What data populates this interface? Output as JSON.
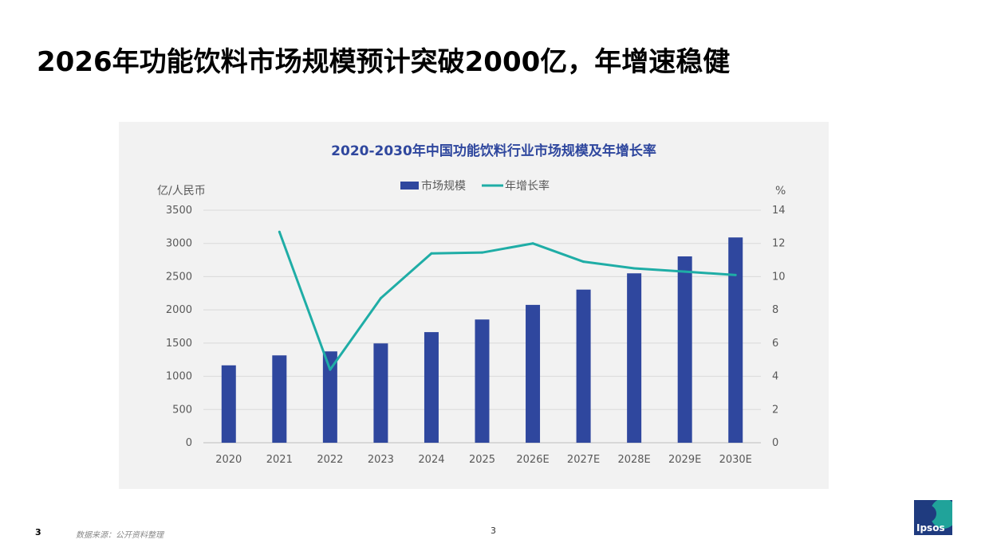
{
  "slide": {
    "title": "2026年功能饮料市场规模预计突破2000亿，年增速稳健",
    "page_number": "3",
    "source": "数据来源：公开资料整理",
    "page_center": "3",
    "logo_text": "Ipsos"
  },
  "colors": {
    "bar": "#2f479e",
    "line": "#1fada6",
    "title": "#2f479e",
    "panel": "#f2f2f2"
  },
  "chart_data": {
    "type": "bar",
    "title": "2020-2030年中国功能饮料行业市场规模及年增长率",
    "ylabel_left": "亿/人民币",
    "ylabel_right": "%",
    "categories": [
      "2020",
      "2021",
      "2022",
      "2023",
      "2024",
      "2025",
      "2026E",
      "2027E",
      "2028E",
      "2029E",
      "2030E"
    ],
    "ylim_left": [
      0,
      3500
    ],
    "yticks_left": [
      0,
      500,
      1000,
      1500,
      2000,
      2500,
      3000,
      3500
    ],
    "ylim_right": [
      0,
      14
    ],
    "yticks_right": [
      0,
      2,
      4,
      6,
      8,
      10,
      12,
      14
    ],
    "legend_position": "top-center",
    "grid": true,
    "series": [
      {
        "name": "市场规模",
        "type": "bar",
        "axis": "left",
        "values": [
          1165,
          1315,
          1375,
          1495,
          1665,
          1855,
          2075,
          2305,
          2550,
          2805,
          3090
        ]
      },
      {
        "name": "年增长率",
        "type": "line",
        "axis": "right",
        "values": [
          null,
          12.7,
          4.4,
          8.7,
          11.4,
          11.45,
          12.0,
          10.9,
          10.5,
          10.3,
          10.1
        ]
      }
    ]
  }
}
